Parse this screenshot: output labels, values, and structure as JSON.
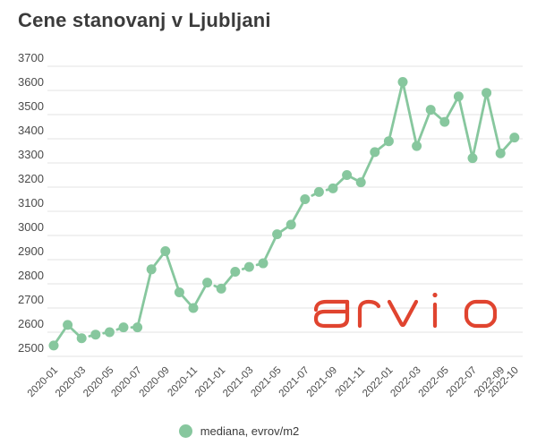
{
  "title": "Cene stanovanj v Ljubljani",
  "legend": {
    "label": "mediana, evrov/m2"
  },
  "logo": {
    "text": "arvio",
    "color": "#e0442f"
  },
  "colors": {
    "line": "#87c79e",
    "title_text": "#3b3b3b",
    "axis_text": "#4b4b4b",
    "grid": "#e3e3e3",
    "background": "#ffffff"
  },
  "chart_data": {
    "type": "line",
    "title": "Cene stanovanj v Ljubljani",
    "xlabel": "",
    "ylabel": "",
    "ylim": [
      2500,
      3700
    ],
    "y_ticks": [
      2500,
      2600,
      2700,
      2800,
      2900,
      3000,
      3100,
      3200,
      3300,
      3400,
      3500,
      3600,
      3700
    ],
    "grid": "horizontal",
    "legend_position": "bottom",
    "x": [
      "2020-01",
      "2020-02",
      "2020-03",
      "2020-04",
      "2020-05",
      "2020-06",
      "2020-07",
      "2020-08",
      "2020-09",
      "2020-10",
      "2020-11",
      "2020-12",
      "2021-01",
      "2021-02",
      "2021-03",
      "2021-04",
      "2021-05",
      "2021-06",
      "2021-07",
      "2021-08",
      "2021-09",
      "2021-10",
      "2021-11",
      "2021-12",
      "2022-01",
      "2022-02",
      "2022-03",
      "2022-04",
      "2022-05",
      "2022-06",
      "2022-07",
      "2022-08",
      "2022-09",
      "2022-10"
    ],
    "x_tick_indices": [
      0,
      2,
      4,
      6,
      8,
      10,
      12,
      14,
      16,
      18,
      20,
      22,
      24,
      26,
      28,
      30,
      32,
      33
    ],
    "x_tick_labels": [
      "2020-01",
      "2020-03",
      "2020-05",
      "2020-07",
      "2020-09",
      "2020-11",
      "2021-01",
      "2021-03",
      "2021-05",
      "2021-07",
      "2021-09",
      "2021-11",
      "2022-01",
      "2022-03",
      "2022-05",
      "2022-07",
      "2022-09",
      "2022-10"
    ],
    "series": [
      {
        "name": "mediana, evrov/m2",
        "values": [
          2545,
          2630,
          2575,
          2590,
          2600,
          2620,
          2620,
          2860,
          2935,
          2765,
          2700,
          2805,
          2780,
          2850,
          2870,
          2885,
          3005,
          3045,
          3150,
          3180,
          3195,
          3250,
          3220,
          3345,
          3390,
          3635,
          3370,
          3520,
          3470,
          3575,
          3320,
          3590,
          3340,
          3405
        ]
      }
    ],
    "dashed_segment_start_indices": [
      2,
      3,
      4,
      5,
      11,
      13,
      14,
      18,
      19
    ]
  }
}
